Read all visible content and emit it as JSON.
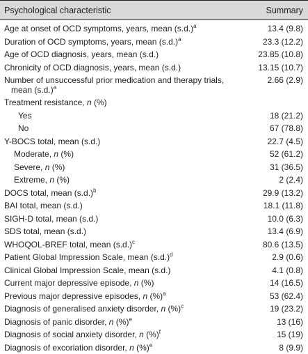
{
  "header": {
    "col1": "Psychological characteristic",
    "col2": "Summary"
  },
  "rows": [
    {
      "pre": "Age at onset of OCD symptoms, years, mean (s.d.)",
      "sup": "a",
      "value": "13.4 (9.8)"
    },
    {
      "pre": "Duration of OCD symptoms, years, mean (s.d.)",
      "sup": "a",
      "value": "23.3 (12.2)"
    },
    {
      "pre": "Age of OCD diagnosis, years, mean (s.d.)",
      "value": "23.85 (10.8)"
    },
    {
      "pre": "Chronicity of OCD diagnosis, years, mean (s.d.)",
      "value": "13.15 (10.7)"
    },
    {
      "pre": "Number of unsuccessful prior medication and therapy trials,",
      "line2": "mean (s.d.)",
      "sup": "a",
      "value": "2.66 (2.9)"
    },
    {
      "pre": "Treatment resistance, ",
      "italic": "n",
      "post": " (%)",
      "value": ""
    },
    {
      "pre": "Yes",
      "value": "18 (21.2)"
    },
    {
      "pre": "No",
      "value": "67 (78.8)"
    },
    {
      "pre": "Y-BOCS total, mean (s.d.)",
      "value": "22.7 (4.5)"
    },
    {
      "pre": "Moderate, ",
      "italic": "n",
      "post": " (%)",
      "value": "52 (61.2)"
    },
    {
      "pre": "Severe, ",
      "italic": "n",
      "post": " (%)",
      "value": "31 (36.5)"
    },
    {
      "pre": "Extreme, ",
      "italic": "n",
      "post": " (%)",
      "value": "2 (2.4)"
    },
    {
      "pre": "DOCS total, mean (s.d.)",
      "sup": "b",
      "value": "29.9 (13.2)"
    },
    {
      "pre": "BAI total, mean (s.d.)",
      "value": "18.1 (11.8)"
    },
    {
      "pre": "SIGH-D total, mean (s.d.)",
      "value": "10.0 (6.3)"
    },
    {
      "pre": "SDS total, mean (s.d.)",
      "value": "13.4 (6.9)"
    },
    {
      "pre": "WHOQOL-BREF total, mean (s.d.)",
      "sup": "c",
      "value": "80.6 (13.5)"
    },
    {
      "pre": "Patient Global Impression Scale, mean (s.d.)",
      "sup": "d",
      "value": "2.9 (0.6)"
    },
    {
      "pre": "Clinical Global Impression Scale, mean (s.d.)",
      "value": "4.1 (0.8)"
    },
    {
      "pre": "Current major depressive episode, ",
      "italic": "n",
      "post": " (%)",
      "value": "14 (16.5)"
    },
    {
      "pre": "Previous major depressive episodes, ",
      "italic": "n",
      "post": " (%)",
      "sup": "a",
      "value": "53 (62.4)"
    },
    {
      "pre": "Diagnosis of generalised anxiety disorder, ",
      "italic": "n",
      "post": " (%)",
      "sup": "c",
      "value": "19 (23.2)"
    },
    {
      "pre": "Diagnosis of panic disorder, ",
      "italic": "n",
      "post": " (%)",
      "sup": "e",
      "value": "13 (16)"
    },
    {
      "pre": "Diagnosis of social anxiety disorder, ",
      "italic": "n",
      "post": " (%)",
      "sup": "f",
      "value": "15 (19)"
    },
    {
      "pre": "Diagnosis of excoriation disorder, ",
      "italic": "n",
      "post": " (%)",
      "sup": "e",
      "value": "8 (9.9)"
    }
  ]
}
